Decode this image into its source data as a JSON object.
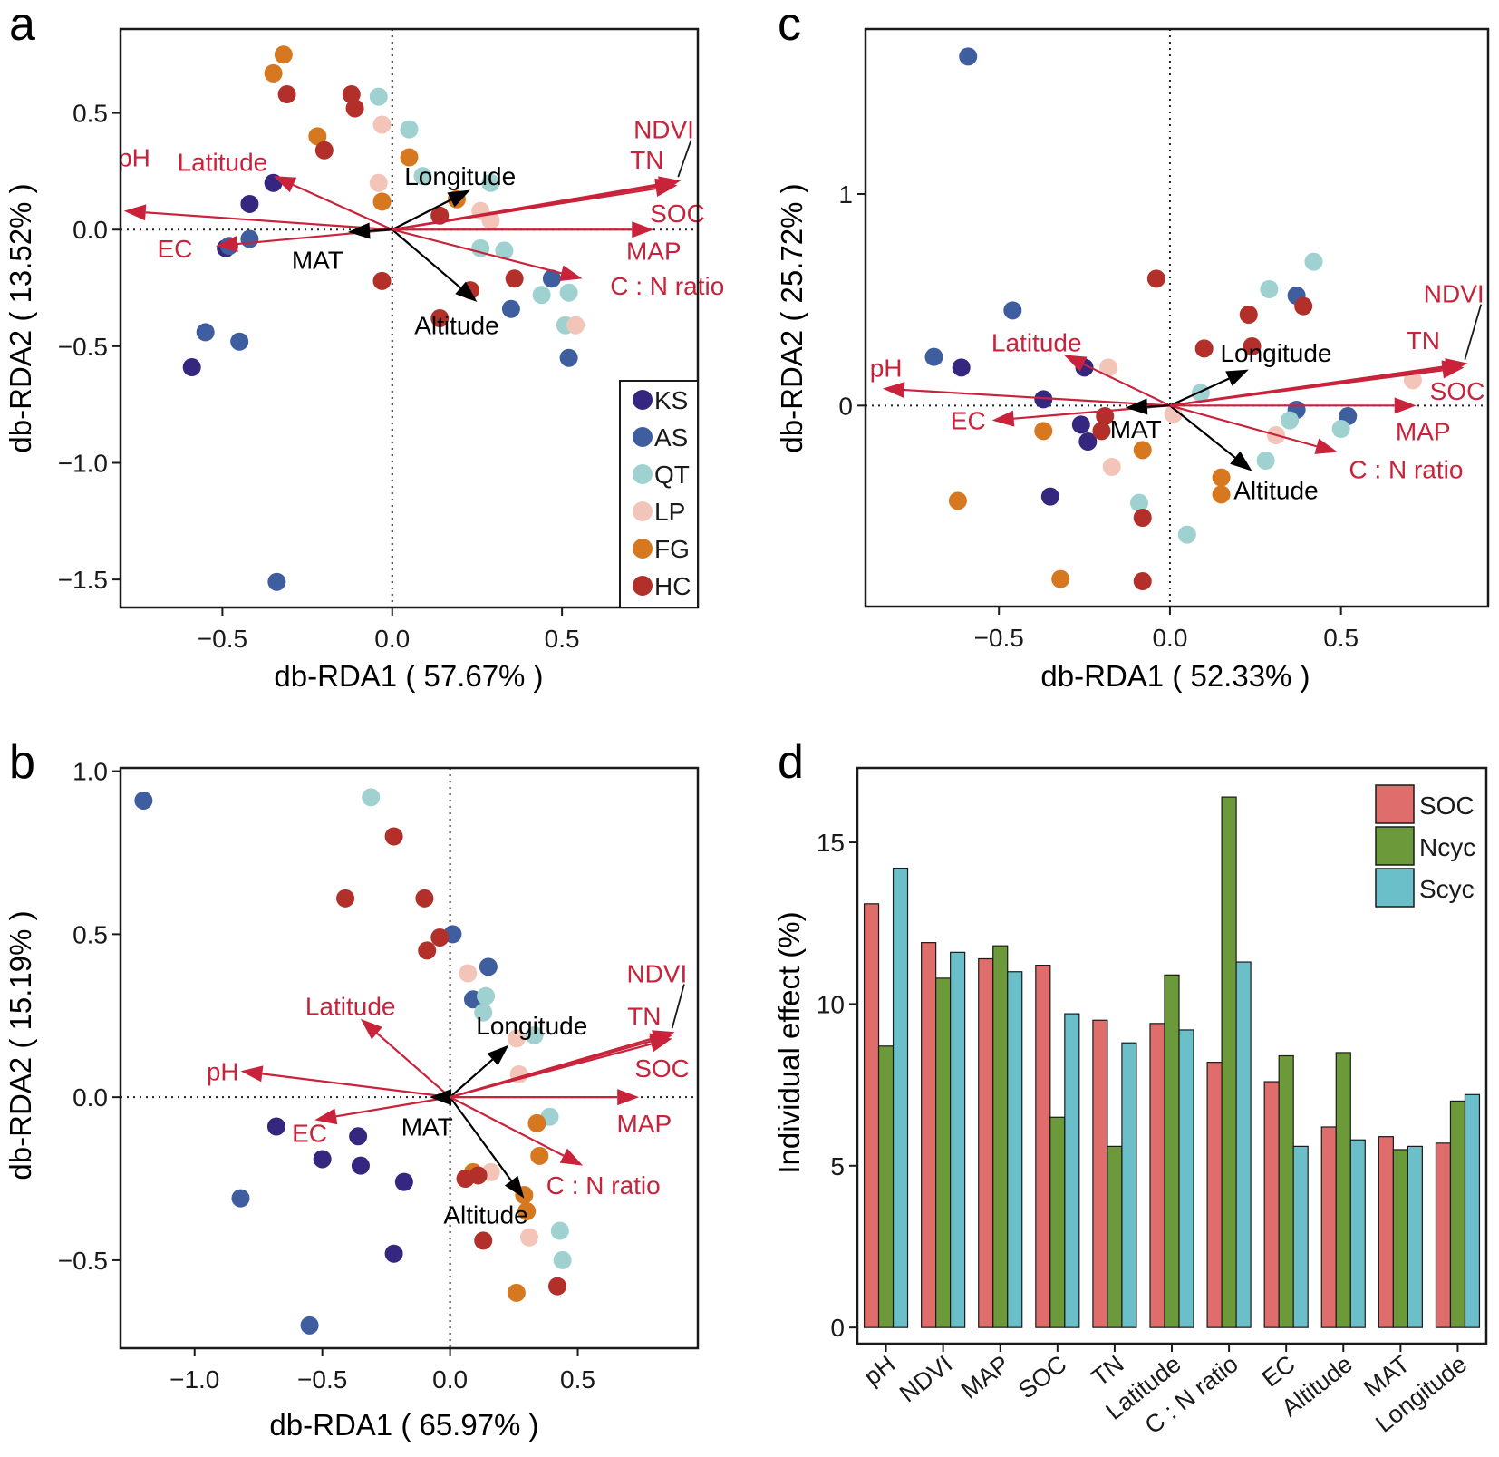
{
  "colors": {
    "red": "#c8233b",
    "black": "#000000",
    "groups": {
      "KS": "#35277f",
      "AS": "#3f5e9f",
      "QT": "#9ed1cf",
      "LP": "#f3c5b8",
      "FG": "#d6781f",
      "HC": "#b22f2a"
    },
    "bars": {
      "SOC": "#df6d6b",
      "Ncyc": "#6c9a3a",
      "Scyc": "#6bbfc9"
    }
  },
  "chart_data": [
    {
      "panel": "a",
      "type": "scatter",
      "xlabel": "db-RDA1 ( 57.67% )",
      "ylabel": "db-RDA2 ( 13.52% )",
      "xlim": [
        -0.8,
        0.9
      ],
      "ylim": [
        -1.62,
        0.86
      ],
      "xticks": [
        -0.5,
        0.0,
        0.5
      ],
      "xtick_labels": [
        "−0.5",
        "0.0",
        "0.5"
      ],
      "yticks": [
        0.5,
        0.0,
        -0.5,
        -1.0,
        -1.5
      ],
      "ytick_labels": [
        "0.5",
        "0.0",
        "−0.5",
        "−1.0",
        "−1.5"
      ],
      "points": [
        {
          "g": "KS",
          "x": -0.42,
          "y": 0.11
        },
        {
          "g": "KS",
          "x": -0.35,
          "y": 0.2
        },
        {
          "g": "KS",
          "x": -0.49,
          "y": -0.08
        },
        {
          "g": "KS",
          "x": -0.59,
          "y": -0.59
        },
        {
          "g": "AS",
          "x": -0.48,
          "y": -0.07
        },
        {
          "g": "AS",
          "x": -0.42,
          "y": -0.04
        },
        {
          "g": "AS",
          "x": -0.55,
          "y": -0.44
        },
        {
          "g": "AS",
          "x": -0.45,
          "y": -0.48
        },
        {
          "g": "AS",
          "x": -0.34,
          "y": -1.51
        },
        {
          "g": "AS",
          "x": 0.35,
          "y": -0.34
        },
        {
          "g": "AS",
          "x": 0.47,
          "y": -0.21
        },
        {
          "g": "AS",
          "x": 0.52,
          "y": -0.55
        },
        {
          "g": "QT",
          "x": -0.04,
          "y": 0.57
        },
        {
          "g": "QT",
          "x": 0.05,
          "y": 0.43
        },
        {
          "g": "QT",
          "x": 0.09,
          "y": 0.23
        },
        {
          "g": "QT",
          "x": 0.29,
          "y": 0.2
        },
        {
          "g": "QT",
          "x": 0.26,
          "y": -0.08
        },
        {
          "g": "QT",
          "x": 0.33,
          "y": -0.09
        },
        {
          "g": "QT",
          "x": 0.44,
          "y": -0.28
        },
        {
          "g": "QT",
          "x": 0.52,
          "y": -0.27
        },
        {
          "g": "QT",
          "x": 0.51,
          "y": -0.41
        },
        {
          "g": "LP",
          "x": -0.03,
          "y": 0.45
        },
        {
          "g": "LP",
          "x": -0.04,
          "y": 0.2
        },
        {
          "g": "LP",
          "x": 0.26,
          "y": 0.08
        },
        {
          "g": "LP",
          "x": 0.29,
          "y": 0.04
        },
        {
          "g": "LP",
          "x": 0.54,
          "y": -0.41
        },
        {
          "g": "FG",
          "x": -0.32,
          "y": 0.75
        },
        {
          "g": "FG",
          "x": -0.35,
          "y": 0.67
        },
        {
          "g": "FG",
          "x": -0.22,
          "y": 0.4
        },
        {
          "g": "FG",
          "x": -0.03,
          "y": 0.12
        },
        {
          "g": "FG",
          "x": 0.05,
          "y": 0.31
        },
        {
          "g": "FG",
          "x": 0.19,
          "y": 0.13
        },
        {
          "g": "HC",
          "x": -0.31,
          "y": 0.58
        },
        {
          "g": "HC",
          "x": -0.12,
          "y": 0.58
        },
        {
          "g": "HC",
          "x": -0.11,
          "y": 0.52
        },
        {
          "g": "HC",
          "x": -0.2,
          "y": 0.34
        },
        {
          "g": "HC",
          "x": 0.14,
          "y": 0.06
        },
        {
          "g": "HC",
          "x": -0.03,
          "y": -0.22
        },
        {
          "g": "HC",
          "x": 0.23,
          "y": -0.26
        },
        {
          "g": "HC",
          "x": 0.36,
          "y": -0.21
        },
        {
          "g": "HC",
          "x": 0.14,
          "y": -0.38
        }
      ],
      "vectors": [
        {
          "name": "pH",
          "x": -0.79,
          "y": 0.08,
          "c": "red",
          "lx": -0.76,
          "ly": 0.31
        },
        {
          "name": "Latitude",
          "x": -0.35,
          "y": 0.23,
          "c": "red",
          "lx": -0.5,
          "ly": 0.29
        },
        {
          "name": "EC",
          "x": -0.52,
          "y": -0.07,
          "c": "red",
          "lx": -0.64,
          "ly": -0.08
        },
        {
          "name": "MAT",
          "x": -0.13,
          "y": -0.01,
          "c": "black",
          "lx": -0.22,
          "ly": -0.13
        },
        {
          "name": "Longitude",
          "x": 0.23,
          "y": 0.17,
          "c": "black",
          "lx": 0.2,
          "ly": 0.23
        },
        {
          "name": "Altitude",
          "x": 0.25,
          "y": -0.31,
          "c": "black",
          "lx": 0.19,
          "ly": -0.41
        },
        {
          "name": "NDVI",
          "x": 0.85,
          "y": 0.21,
          "c": "red",
          "lx": 0.8,
          "ly": 0.43,
          "leader": true
        },
        {
          "name": "TN",
          "x": 0.84,
          "y": 0.2,
          "c": "red",
          "lx": 0.75,
          "ly": 0.3
        },
        {
          "name": "SOC",
          "x": 0.84,
          "y": 0.19,
          "c": "red",
          "lx": 0.84,
          "ly": 0.07
        },
        {
          "name": "MAP",
          "x": 0.77,
          "y": 0.0,
          "c": "red",
          "lx": 0.77,
          "ly": -0.09
        },
        {
          "name": "C : N ratio",
          "x": 0.56,
          "y": -0.21,
          "c": "red",
          "lx": 0.81,
          "ly": -0.24
        }
      ],
      "legend": [
        "KS",
        "AS",
        "QT",
        "LP",
        "FG",
        "HC"
      ]
    },
    {
      "panel": "b",
      "type": "scatter",
      "xlabel": "db-RDA1 ( 65.97% )",
      "ylabel": "db-RDA2 ( 15.19% )",
      "xlim": [
        -1.29,
        0.97
      ],
      "ylim": [
        -0.77,
        1.01
      ],
      "xticks": [
        -1.0,
        -0.5,
        0.0,
        0.5
      ],
      "xtick_labels": [
        "−1.0",
        "−0.5",
        "0.0",
        "0.5"
      ],
      "yticks": [
        1.0,
        0.5,
        0.0,
        -0.5
      ],
      "ytick_labels": [
        "1.0",
        "0.5",
        "0.0",
        "−0.5"
      ],
      "points": [
        {
          "g": "KS",
          "x": -0.68,
          "y": -0.09
        },
        {
          "g": "KS",
          "x": -0.36,
          "y": -0.12
        },
        {
          "g": "KS",
          "x": -0.5,
          "y": -0.19
        },
        {
          "g": "KS",
          "x": -0.35,
          "y": -0.21
        },
        {
          "g": "KS",
          "x": -0.18,
          "y": -0.26
        },
        {
          "g": "KS",
          "x": -0.22,
          "y": -0.48
        },
        {
          "g": "AS",
          "x": -1.2,
          "y": 0.91
        },
        {
          "g": "AS",
          "x": 0.01,
          "y": 0.5
        },
        {
          "g": "AS",
          "x": 0.15,
          "y": 0.4
        },
        {
          "g": "AS",
          "x": 0.09,
          "y": 0.3
        },
        {
          "g": "AS",
          "x": -0.82,
          "y": -0.31
        },
        {
          "g": "AS",
          "x": -0.55,
          "y": -0.7
        },
        {
          "g": "QT",
          "x": -0.31,
          "y": 0.92
        },
        {
          "g": "QT",
          "x": 0.14,
          "y": 0.31
        },
        {
          "g": "QT",
          "x": 0.13,
          "y": 0.26
        },
        {
          "g": "QT",
          "x": 0.33,
          "y": 0.19
        },
        {
          "g": "QT",
          "x": 0.39,
          "y": -0.06
        },
        {
          "g": "QT",
          "x": 0.43,
          "y": -0.41
        },
        {
          "g": "QT",
          "x": 0.44,
          "y": -0.5
        },
        {
          "g": "LP",
          "x": 0.07,
          "y": 0.38
        },
        {
          "g": "LP",
          "x": 0.26,
          "y": 0.18
        },
        {
          "g": "LP",
          "x": 0.27,
          "y": 0.07
        },
        {
          "g": "LP",
          "x": 0.16,
          "y": -0.23
        },
        {
          "g": "LP",
          "x": 0.31,
          "y": -0.43
        },
        {
          "g": "FG",
          "x": 0.34,
          "y": -0.08
        },
        {
          "g": "FG",
          "x": 0.35,
          "y": -0.18
        },
        {
          "g": "FG",
          "x": 0.09,
          "y": -0.23
        },
        {
          "g": "FG",
          "x": 0.29,
          "y": -0.3
        },
        {
          "g": "FG",
          "x": 0.3,
          "y": -0.35
        },
        {
          "g": "FG",
          "x": 0.26,
          "y": -0.6
        },
        {
          "g": "HC",
          "x": -0.22,
          "y": 0.8
        },
        {
          "g": "HC",
          "x": -0.41,
          "y": 0.61
        },
        {
          "g": "HC",
          "x": -0.1,
          "y": 0.61
        },
        {
          "g": "HC",
          "x": -0.04,
          "y": 0.49
        },
        {
          "g": "HC",
          "x": -0.09,
          "y": 0.45
        },
        {
          "g": "HC",
          "x": 0.06,
          "y": -0.25
        },
        {
          "g": "HC",
          "x": 0.11,
          "y": -0.24
        },
        {
          "g": "HC",
          "x": 0.13,
          "y": -0.44
        },
        {
          "g": "HC",
          "x": 0.42,
          "y": -0.58
        }
      ],
      "vectors": [
        {
          "name": "pH",
          "x": -0.82,
          "y": 0.08,
          "c": "red",
          "lx": -0.89,
          "ly": 0.08
        },
        {
          "name": "Latitude",
          "x": -0.35,
          "y": 0.24,
          "c": "red",
          "lx": -0.39,
          "ly": 0.28
        },
        {
          "name": "EC",
          "x": -0.53,
          "y": -0.07,
          "c": "red",
          "lx": -0.55,
          "ly": -0.11
        },
        {
          "name": "MAT",
          "x": -0.08,
          "y": 0.0,
          "c": "black",
          "lx": -0.09,
          "ly": -0.09
        },
        {
          "name": "Longitude",
          "x": 0.23,
          "y": 0.16,
          "c": "black",
          "lx": 0.32,
          "ly": 0.22
        },
        {
          "name": "Altitude",
          "x": 0.29,
          "y": -0.31,
          "c": "black",
          "lx": 0.14,
          "ly": -0.36
        },
        {
          "name": "NDVI",
          "x": 0.88,
          "y": 0.2,
          "c": "red",
          "lx": 0.81,
          "ly": 0.38,
          "leader": true
        },
        {
          "name": "TN",
          "x": 0.87,
          "y": 0.19,
          "c": "red",
          "lx": 0.76,
          "ly": 0.25
        },
        {
          "name": "SOC",
          "x": 0.87,
          "y": 0.18,
          "c": "red",
          "lx": 0.83,
          "ly": 0.09
        },
        {
          "name": "MAP",
          "x": 0.74,
          "y": 0.0,
          "c": "red",
          "lx": 0.76,
          "ly": -0.08
        },
        {
          "name": "C : N ratio",
          "x": 0.52,
          "y": -0.21,
          "c": "red",
          "lx": 0.6,
          "ly": -0.27
        }
      ]
    },
    {
      "panel": "c",
      "type": "scatter",
      "xlabel": "db-RDA1 ( 52.33% )",
      "ylabel": "db-RDA2 ( 25.72% )",
      "xlim": [
        -0.89,
        0.93
      ],
      "ylim": [
        -0.95,
        1.78
      ],
      "xticks": [
        -0.5,
        0.0,
        0.5
      ],
      "xtick_labels": [
        "−0.5",
        "0.0",
        "0.5"
      ],
      "yticks": [
        1,
        0
      ],
      "ytick_labels": [
        "1",
        "0"
      ],
      "points": [
        {
          "g": "KS",
          "x": -0.61,
          "y": 0.18
        },
        {
          "g": "KS",
          "x": -0.25,
          "y": 0.18
        },
        {
          "g": "KS",
          "x": -0.37,
          "y": 0.03
        },
        {
          "g": "KS",
          "x": -0.26,
          "y": -0.09
        },
        {
          "g": "KS",
          "x": -0.24,
          "y": -0.17
        },
        {
          "g": "KS",
          "x": -0.35,
          "y": -0.43
        },
        {
          "g": "AS",
          "x": -0.59,
          "y": 1.65
        },
        {
          "g": "AS",
          "x": -0.46,
          "y": 0.45
        },
        {
          "g": "AS",
          "x": -0.69,
          "y": 0.23
        },
        {
          "g": "AS",
          "x": 0.37,
          "y": 0.52
        },
        {
          "g": "AS",
          "x": 0.37,
          "y": -0.02
        },
        {
          "g": "AS",
          "x": 0.52,
          "y": -0.05
        },
        {
          "g": "QT",
          "x": 0.42,
          "y": 0.68
        },
        {
          "g": "QT",
          "x": 0.29,
          "y": 0.55
        },
        {
          "g": "QT",
          "x": 0.09,
          "y": 0.06
        },
        {
          "g": "QT",
          "x": 0.35,
          "y": -0.07
        },
        {
          "g": "QT",
          "x": 0.5,
          "y": -0.11
        },
        {
          "g": "QT",
          "x": 0.28,
          "y": -0.26
        },
        {
          "g": "QT",
          "x": -0.09,
          "y": -0.46
        },
        {
          "g": "QT",
          "x": 0.05,
          "y": -0.61
        },
        {
          "g": "LP",
          "x": -0.18,
          "y": 0.18
        },
        {
          "g": "LP",
          "x": 0.01,
          "y": -0.04
        },
        {
          "g": "LP",
          "x": 0.31,
          "y": -0.14
        },
        {
          "g": "LP",
          "x": -0.17,
          "y": -0.29
        },
        {
          "g": "LP",
          "x": 0.71,
          "y": 0.12
        },
        {
          "g": "FG",
          "x": -0.37,
          "y": -0.12
        },
        {
          "g": "FG",
          "x": -0.08,
          "y": -0.21
        },
        {
          "g": "FG",
          "x": -0.62,
          "y": -0.45
        },
        {
          "g": "FG",
          "x": 0.15,
          "y": -0.34
        },
        {
          "g": "FG",
          "x": 0.15,
          "y": -0.42
        },
        {
          "g": "FG",
          "x": -0.32,
          "y": -0.82
        },
        {
          "g": "HC",
          "x": -0.04,
          "y": 0.6
        },
        {
          "g": "HC",
          "x": 0.23,
          "y": 0.43
        },
        {
          "g": "HC",
          "x": 0.39,
          "y": 0.47
        },
        {
          "g": "HC",
          "x": 0.1,
          "y": 0.27
        },
        {
          "g": "HC",
          "x": 0.24,
          "y": 0.28
        },
        {
          "g": "HC",
          "x": -0.19,
          "y": -0.05
        },
        {
          "g": "HC",
          "x": -0.2,
          "y": -0.12
        },
        {
          "g": "HC",
          "x": -0.08,
          "y": -0.53
        },
        {
          "g": "HC",
          "x": -0.08,
          "y": -0.83
        }
      ],
      "vectors": [
        {
          "name": "pH",
          "x": -0.84,
          "y": 0.08,
          "c": "red",
          "lx": -0.83,
          "ly": 0.18
        },
        {
          "name": "Latitude",
          "x": -0.31,
          "y": 0.24,
          "c": "red",
          "lx": -0.39,
          "ly": 0.3
        },
        {
          "name": "EC",
          "x": -0.52,
          "y": -0.07,
          "c": "red",
          "lx": -0.59,
          "ly": -0.07
        },
        {
          "name": "MAT",
          "x": -0.13,
          "y": -0.01,
          "c": "black",
          "lx": -0.1,
          "ly": -0.11
        },
        {
          "name": "Longitude",
          "x": 0.23,
          "y": 0.17,
          "c": "black",
          "lx": 0.31,
          "ly": 0.25
        },
        {
          "name": "Altitude",
          "x": 0.24,
          "y": -0.31,
          "c": "black",
          "lx": 0.31,
          "ly": -0.4
        },
        {
          "name": "NDVI",
          "x": 0.87,
          "y": 0.2,
          "c": "red",
          "lx": 0.83,
          "ly": 0.53,
          "leader": true
        },
        {
          "name": "TN",
          "x": 0.86,
          "y": 0.19,
          "c": "red",
          "lx": 0.74,
          "ly": 0.31
        },
        {
          "name": "SOC",
          "x": 0.86,
          "y": 0.18,
          "c": "red",
          "lx": 0.84,
          "ly": 0.07
        },
        {
          "name": "MAP",
          "x": 0.72,
          "y": 0.0,
          "c": "red",
          "lx": 0.74,
          "ly": -0.12
        },
        {
          "name": "C : N ratio",
          "x": 0.49,
          "y": -0.22,
          "c": "red",
          "lx": 0.69,
          "ly": -0.3
        }
      ]
    },
    {
      "panel": "d",
      "type": "bar",
      "ylabel": "Individual effect (%)",
      "ylim": [
        -0.5,
        17.3
      ],
      "yticks": [
        15,
        10,
        5,
        0
      ],
      "ytick_labels": [
        "15",
        "10",
        "5",
        "0"
      ],
      "categories": [
        "pH",
        "NDVI",
        "MAP",
        "SOC",
        "TN",
        "Latitude",
        "C : N ratio",
        "EC",
        "Altitude",
        "MAT",
        "Longitude"
      ],
      "series": [
        {
          "name": "SOC",
          "values": [
            13.1,
            11.9,
            11.4,
            11.2,
            9.5,
            9.4,
            8.2,
            7.6,
            6.2,
            5.9,
            5.7
          ]
        },
        {
          "name": "Ncyc",
          "values": [
            8.7,
            10.8,
            11.8,
            6.5,
            5.6,
            10.9,
            16.4,
            8.4,
            8.5,
            5.5,
            7.0
          ]
        },
        {
          "name": "Scyc",
          "values": [
            14.2,
            11.6,
            11.0,
            9.7,
            8.8,
            9.2,
            11.3,
            5.6,
            5.8,
            5.6,
            7.2
          ]
        }
      ]
    }
  ]
}
